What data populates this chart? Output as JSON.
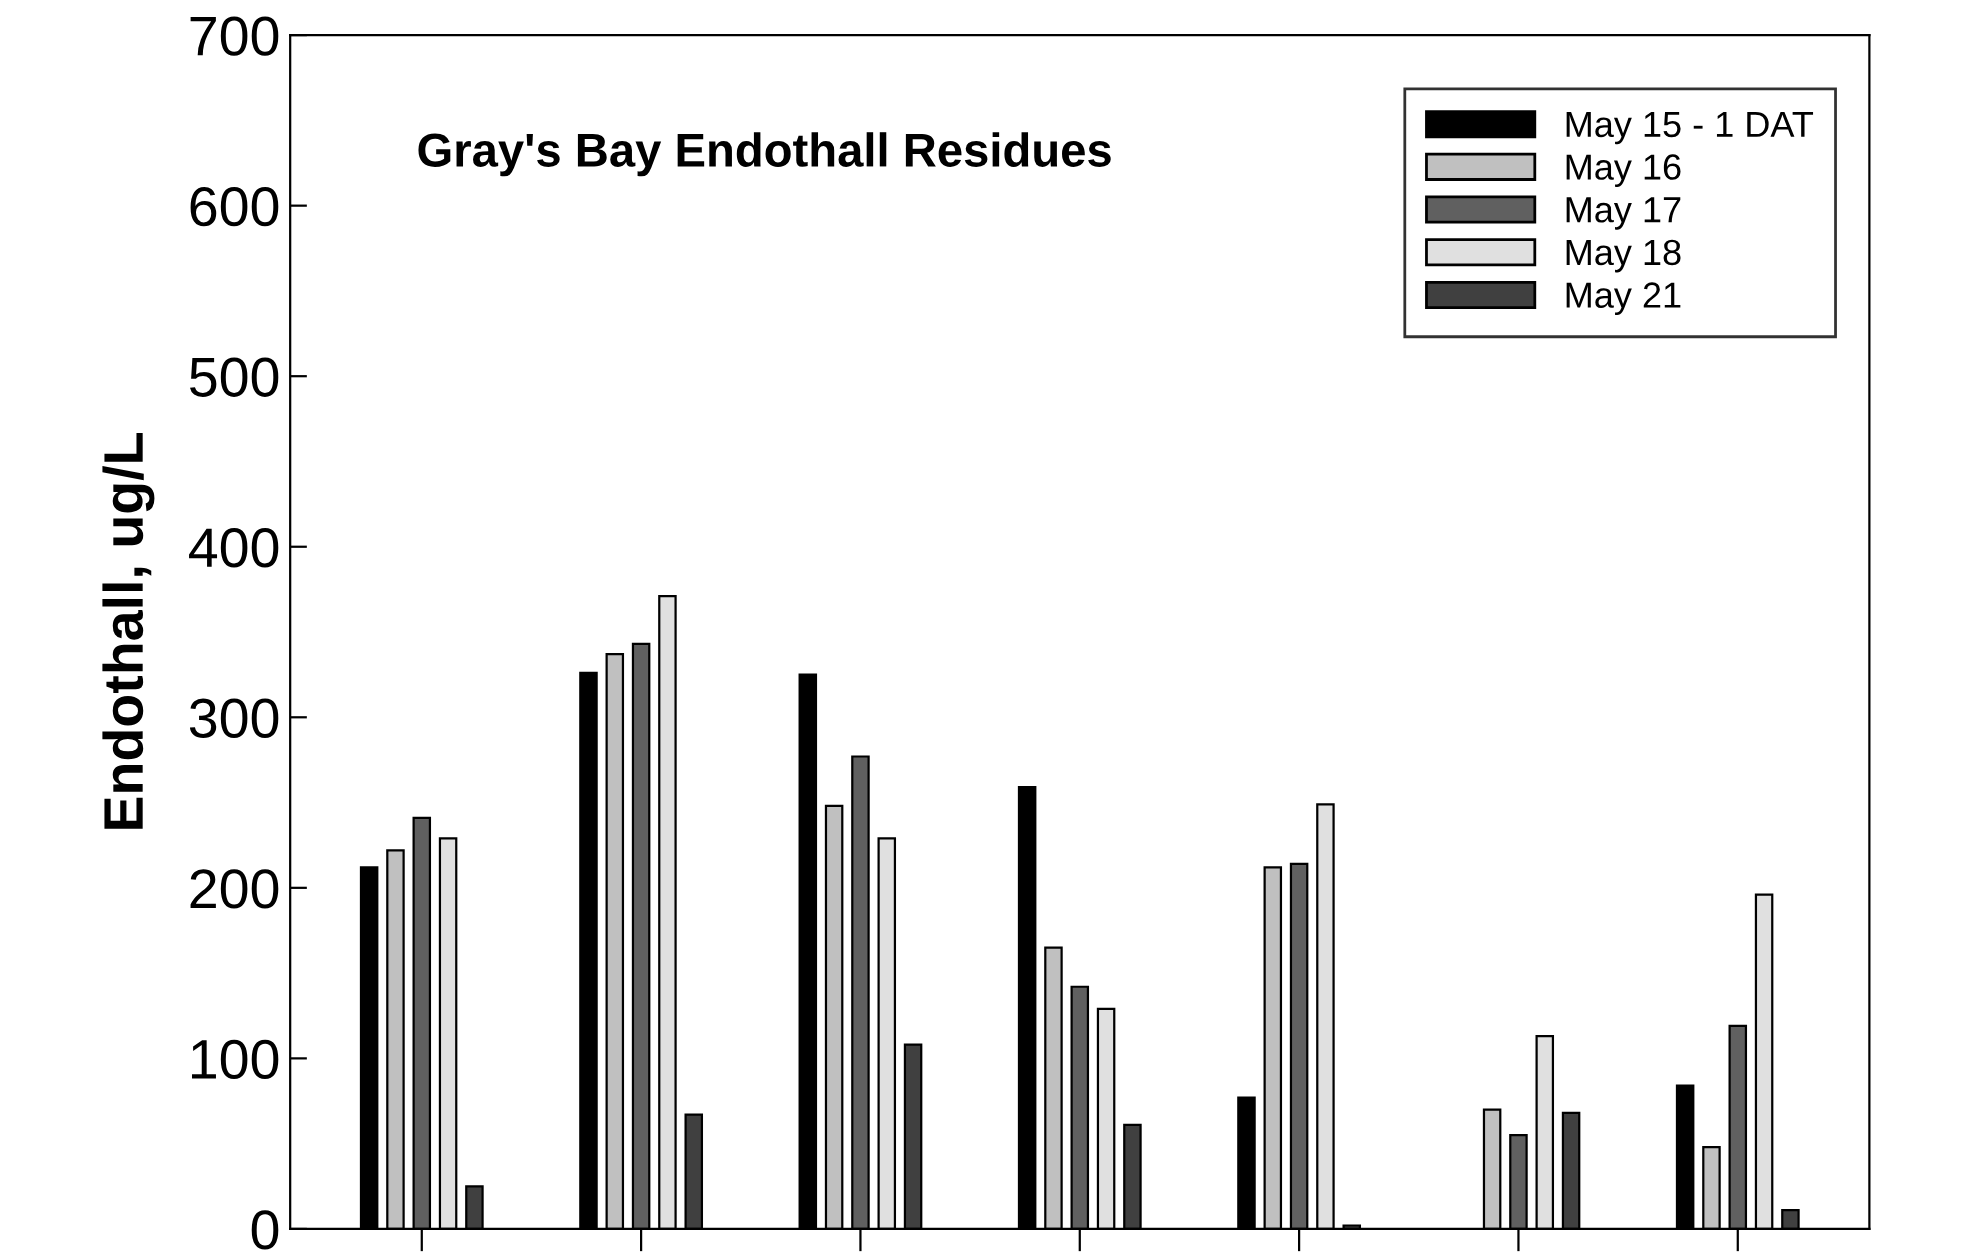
{
  "chart_data": {
    "type": "bar",
    "title": "Gray's Bay Endothall Residues",
    "ylabel": "Endothall, ug/L",
    "categories": [
      null,
      null,
      null,
      null,
      null,
      null,
      null
    ],
    "series": [
      {
        "name": "May 15 - 1 DAT",
        "color": "#000000",
        "values": [
          212,
          326,
          325,
          259,
          77,
          null,
          84
        ]
      },
      {
        "name": "May 16",
        "color": "#c0c0c0",
        "values": [
          222,
          337,
          248,
          165,
          212,
          70,
          48
        ]
      },
      {
        "name": "May 17",
        "color": "#606060",
        "values": [
          241,
          343,
          277,
          142,
          214,
          55,
          119
        ]
      },
      {
        "name": "May 18",
        "color": "#e0e0e0",
        "values": [
          229,
          371,
          229,
          129,
          249,
          113,
          196
        ]
      },
      {
        "name": "May 21",
        "color": "#404040",
        "values": [
          25,
          67,
          108,
          61,
          2,
          68,
          11
        ]
      }
    ],
    "ylim": [
      0,
      700
    ],
    "yticks": [
      0,
      100,
      200,
      300,
      400,
      500,
      600,
      700
    ],
    "grid": false,
    "legend": "top right"
  }
}
